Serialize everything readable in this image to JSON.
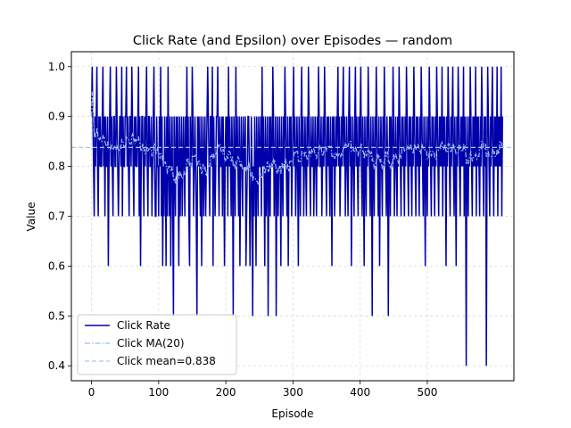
{
  "chart_data": {
    "type": "line",
    "title": "Click Rate (and Epsilon) over Episodes — random",
    "xlabel": "Episode",
    "ylabel": "Value",
    "xlim": [
      -30,
      629
    ],
    "ylim": [
      0.37,
      1.03
    ],
    "xticks": [
      0,
      100,
      200,
      300,
      400,
      500
    ],
    "yticks": [
      0.4,
      0.5,
      0.6,
      0.7,
      0.8,
      0.9,
      1.0
    ],
    "ytick_labels": [
      "0.4",
      "0.5",
      "0.6",
      "0.7",
      "0.8",
      "0.9",
      "1.0"
    ],
    "grid": true,
    "legend_position": "lower-left",
    "colors": {
      "click_rate": "#0000aa",
      "moving_average": "#99bbee",
      "mean_line": "#a8c8ee",
      "grid": "#d9d9d9"
    },
    "series": [
      {
        "name": "Click Rate",
        "style": "solid",
        "x_start": 0,
        "x_step": 1,
        "values": [
          0.9,
          1.0,
          0.9,
          0.8,
          0.7,
          0.9,
          0.8,
          0.9,
          1.0,
          0.8,
          0.7,
          0.9,
          0.8,
          0.9,
          0.8,
          0.8,
          0.9,
          1.0,
          0.8,
          0.9,
          0.7,
          0.9,
          0.8,
          0.8,
          0.9,
          0.6,
          0.8,
          0.9,
          1.0,
          0.8,
          0.9,
          0.8,
          0.7,
          0.9,
          0.9,
          0.8,
          0.8,
          1.0,
          0.9,
          0.8,
          0.7,
          0.8,
          0.9,
          0.9,
          0.8,
          1.0,
          0.7,
          0.9,
          0.8,
          0.8,
          0.9,
          0.9,
          1.0,
          0.8,
          0.9,
          0.8,
          0.7,
          0.9,
          0.9,
          0.8,
          1.0,
          0.9,
          0.8,
          0.7,
          0.9,
          0.8,
          0.9,
          0.8,
          0.8,
          0.9,
          1.0,
          0.7,
          0.9,
          0.6,
          0.8,
          0.9,
          0.9,
          0.8,
          0.7,
          0.9,
          0.8,
          0.9,
          1.0,
          0.8,
          0.7,
          0.9,
          0.9,
          0.8,
          0.8,
          0.9,
          0.7,
          0.8,
          0.9,
          1.0,
          0.8,
          0.7,
          0.7,
          0.9,
          0.8,
          0.8,
          0.7,
          0.9,
          0.8,
          1.0,
          0.7,
          0.9,
          0.6,
          0.8,
          0.7,
          0.9,
          0.8,
          0.6,
          0.9,
          0.7,
          1.0,
          0.8,
          0.7,
          0.9,
          0.6,
          0.8,
          0.9,
          0.7,
          0.5,
          0.9,
          0.8,
          0.7,
          0.9,
          0.8,
          0.9,
          0.8,
          0.6,
          0.9,
          0.7,
          0.8,
          0.9,
          0.7,
          0.8,
          0.9,
          0.8,
          0.7,
          0.9,
          0.8,
          1.0,
          0.8,
          0.9,
          0.7,
          0.6,
          0.9,
          0.8,
          0.8,
          1.0,
          0.9,
          0.7,
          0.8,
          0.9,
          0.8,
          0.7,
          0.5,
          0.9,
          0.8,
          0.9,
          0.8,
          0.7,
          0.9,
          0.6,
          0.8,
          0.9,
          0.7,
          0.8,
          0.9,
          0.7,
          0.8,
          0.9,
          1.0,
          0.9,
          0.8,
          0.7,
          0.9,
          0.9,
          0.8,
          1.0,
          0.6,
          0.9,
          0.8,
          0.7,
          0.8,
          0.9,
          0.9,
          1.0,
          0.8,
          0.7,
          0.9,
          0.8,
          0.8,
          0.9,
          0.7,
          0.9,
          0.8,
          0.6,
          0.8,
          0.9,
          0.8,
          0.9,
          0.7,
          1.0,
          0.8,
          0.9,
          0.8,
          0.7,
          0.9,
          0.8,
          0.5,
          0.9,
          0.8,
          0.7,
          1.0,
          0.8,
          0.9,
          0.8,
          0.7,
          0.9,
          0.6,
          0.8,
          0.9,
          0.8,
          0.7,
          0.9,
          0.8,
          0.8,
          0.9,
          0.6,
          0.7,
          0.8,
          0.9,
          0.9,
          0.8,
          0.6,
          0.7,
          0.9,
          0.8,
          0.5,
          0.8,
          0.7,
          0.9,
          0.8,
          0.6,
          0.9,
          0.8,
          0.7,
          0.9,
          0.8,
          0.8,
          0.9,
          0.7,
          1.0,
          0.8,
          0.9,
          0.8,
          0.6,
          0.9,
          0.7,
          0.8,
          0.9,
          0.5,
          0.8,
          0.9,
          0.7,
          0.9,
          0.8,
          0.8,
          1.0,
          0.9,
          0.7,
          0.8,
          0.9,
          0.5,
          0.8,
          0.9,
          0.7,
          0.8,
          0.9,
          0.8,
          0.6,
          0.9,
          0.8,
          0.7,
          0.9,
          0.8,
          1.0,
          0.9,
          0.8,
          0.7,
          0.9,
          0.6,
          0.8,
          0.9,
          0.8,
          0.9,
          0.7,
          0.8,
          0.9,
          1.0,
          0.8,
          0.9,
          0.7,
          0.8,
          0.9,
          0.8,
          0.6,
          0.9,
          0.8,
          0.7,
          0.9,
          1.0,
          0.8,
          0.9,
          0.7,
          0.8,
          0.9,
          0.8,
          0.7,
          0.9,
          0.8,
          1.0,
          0.9,
          0.8,
          0.7,
          0.9,
          0.8,
          0.8,
          0.9,
          0.7,
          0.8,
          0.9,
          0.8,
          0.7,
          0.9,
          0.8,
          1.0,
          0.9,
          0.8,
          0.8,
          0.9,
          0.7,
          0.8,
          0.9,
          0.8,
          1.0,
          0.9,
          0.8,
          0.7,
          0.9,
          0.8,
          0.9,
          0.8,
          0.7,
          0.9,
          0.8,
          0.6,
          0.9,
          0.8,
          0.9,
          0.7,
          0.8,
          0.9,
          0.8,
          0.9,
          1.0,
          0.8,
          0.9,
          0.7,
          0.8,
          0.9,
          0.8,
          0.9,
          1.0,
          0.8,
          0.9,
          0.7,
          0.8,
          0.9,
          0.8,
          0.7,
          0.9,
          1.0,
          0.8,
          0.9,
          0.6,
          0.8,
          0.9,
          0.8,
          0.7,
          0.9,
          1.0,
          0.8,
          0.9,
          0.8,
          0.7,
          0.9,
          0.8,
          0.9,
          1.0,
          0.8,
          0.7,
          0.9,
          0.8,
          0.6,
          0.9,
          0.8,
          0.7,
          0.9,
          0.8,
          1.0,
          0.9,
          0.8,
          0.7,
          0.9,
          0.8,
          0.5,
          0.9,
          0.8,
          0.7,
          0.9,
          0.8,
          1.0,
          0.9,
          0.8,
          0.7,
          0.9,
          0.6,
          0.8,
          0.9,
          0.8,
          0.7,
          0.9,
          0.8,
          1.0,
          0.9,
          0.8,
          0.7,
          0.9,
          0.8,
          0.5,
          0.8,
          0.9,
          0.7,
          0.9,
          0.8,
          0.8,
          1.0,
          0.9,
          0.7,
          0.8,
          0.9,
          0.8,
          0.7,
          0.9,
          0.8,
          1.0,
          0.9,
          0.8,
          0.7,
          0.9,
          0.8,
          0.9,
          0.8,
          0.7,
          0.9,
          0.8,
          1.0,
          0.9,
          0.8,
          0.7,
          0.9,
          0.8,
          0.9,
          0.8,
          0.7,
          0.9,
          0.8,
          1.0,
          0.9,
          0.8,
          0.7,
          0.9,
          0.8,
          0.9,
          0.8,
          0.7,
          0.9,
          0.8,
          1.0,
          0.9,
          0.8,
          0.7,
          0.9,
          0.8,
          0.6,
          0.9,
          0.8,
          0.7,
          0.9,
          0.8,
          1.0,
          0.9,
          0.8,
          0.7,
          0.9,
          0.8,
          0.9,
          0.8,
          0.7,
          0.9,
          0.8,
          1.0,
          0.9,
          0.8,
          0.7,
          0.9,
          0.8,
          0.9,
          0.8,
          1.0,
          0.7,
          0.9,
          0.8,
          0.9,
          0.8,
          0.6,
          0.9,
          0.8,
          1.0,
          0.9,
          0.8,
          0.7,
          0.9,
          0.8,
          0.9,
          1.0,
          0.8,
          0.7,
          0.9,
          0.8,
          0.6,
          0.9,
          0.8,
          1.0,
          0.9,
          0.8,
          0.7,
          0.9,
          0.8,
          0.9,
          0.8,
          1.0,
          0.7,
          0.9,
          0.8,
          0.4,
          0.9,
          0.8,
          0.7,
          0.9,
          0.8,
          1.0,
          0.9,
          0.8,
          0.7,
          0.9,
          0.8,
          0.9,
          0.8,
          1.0,
          0.7,
          0.9,
          0.8,
          0.9,
          0.8,
          0.7,
          0.9,
          0.8,
          1.0,
          0.9,
          0.8,
          0.7,
          0.9,
          0.8,
          0.9,
          0.4,
          0.8,
          1.0,
          0.9,
          0.8,
          0.7,
          0.9,
          0.8,
          0.9,
          1.0,
          0.8,
          0.7,
          0.9,
          0.8,
          0.9,
          0.8,
          1.0,
          0.7,
          0.9,
          0.8,
          0.9,
          0.8,
          1.0,
          0.7,
          0.9
        ]
      },
      {
        "name": "Click MA(20)",
        "style": "dashdot",
        "window": 20
      },
      {
        "name": "Click mean=0.838",
        "style": "dashed",
        "value": 0.838
      }
    ]
  }
}
